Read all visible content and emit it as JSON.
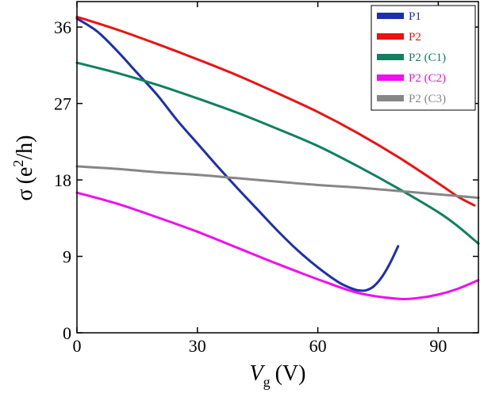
{
  "chart_data": {
    "type": "line",
    "title": "",
    "xlabel": {
      "main": "V",
      "sub": "g",
      "unit": "(V)"
    },
    "ylabel": {
      "sigma": "σ",
      "open": "(e",
      "sup": "2",
      "close": "/h)"
    },
    "xlim": [
      0,
      100
    ],
    "ylim": [
      0,
      39
    ],
    "xticks": [
      0,
      30,
      60,
      90
    ],
    "yticks": [
      0,
      9,
      18,
      27,
      36
    ],
    "grid": false,
    "legend_position": "top-right",
    "series": [
      {
        "name": "P1",
        "color": "#1c2fb0",
        "x": [
          0,
          5,
          10,
          15,
          20,
          25,
          30,
          35,
          40,
          45,
          50,
          55,
          60,
          65,
          68,
          70,
          72,
          74,
          76,
          78,
          80
        ],
        "y": [
          37.0,
          35.5,
          33.2,
          30.6,
          28.0,
          25.0,
          22.3,
          19.6,
          17.0,
          14.5,
          12.0,
          9.7,
          7.7,
          6.0,
          5.3,
          5.0,
          5.0,
          5.5,
          6.6,
          8.2,
          10.2
        ]
      },
      {
        "name": "P2",
        "color": "#ee1111",
        "x": [
          0,
          10,
          20,
          30,
          40,
          50,
          60,
          70,
          80,
          90,
          95,
          99
        ],
        "y": [
          37.2,
          35.7,
          34.0,
          32.2,
          30.3,
          28.2,
          26.0,
          23.5,
          20.7,
          17.6,
          16.0,
          15.0
        ]
      },
      {
        "name": "P2 (C1)",
        "color": "#108060",
        "x": [
          0,
          10,
          20,
          30,
          40,
          50,
          60,
          70,
          80,
          90,
          95,
          100
        ],
        "y": [
          31.8,
          30.6,
          29.2,
          27.6,
          25.9,
          24.0,
          22.0,
          19.6,
          17.0,
          14.2,
          12.5,
          10.5
        ]
      },
      {
        "name": "P2 (C2)",
        "color": "#ee10ee",
        "x": [
          0,
          10,
          20,
          30,
          40,
          50,
          60,
          70,
          80,
          85,
          90,
          95,
          100
        ],
        "y": [
          16.5,
          15.2,
          13.6,
          11.9,
          10.0,
          8.1,
          6.3,
          4.7,
          4.0,
          4.1,
          4.5,
          5.2,
          6.2
        ]
      },
      {
        "name": "P2 (C3)",
        "color": "#868686",
        "x": [
          0,
          10,
          20,
          30,
          40,
          50,
          60,
          70,
          80,
          90,
          100
        ],
        "y": [
          19.6,
          19.3,
          18.9,
          18.6,
          18.2,
          17.8,
          17.4,
          17.1,
          16.7,
          16.3,
          15.9
        ]
      }
    ]
  }
}
